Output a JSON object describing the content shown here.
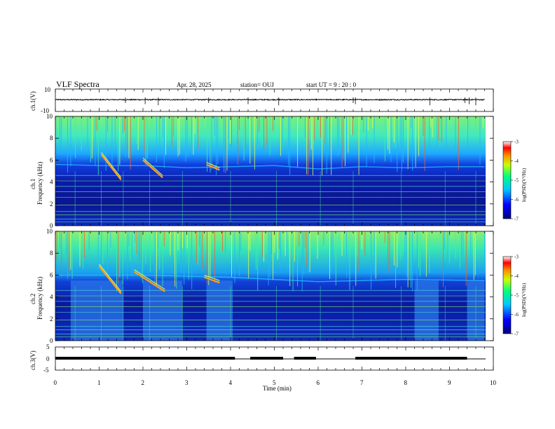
{
  "header": {
    "title": "VLF Spectra",
    "date": "Apr. 28, 2025",
    "station": "station= OUJ",
    "start_ut": "start  UT =  9 : 20 : 0"
  },
  "chart_data": [
    {
      "type": "line",
      "panel": "ch1-waveform",
      "ylabel": "ch.1(V)",
      "ylim": [
        -10,
        10
      ],
      "yticks": [
        "10",
        "-10"
      ],
      "xlim": [
        0,
        10
      ],
      "series": [
        {
          "x": [
            0,
            1,
            2,
            3,
            4,
            5,
            6,
            7,
            8,
            9,
            9.8
          ],
          "values": [
            0.5,
            0.6,
            0.5,
            0.4,
            0.5,
            0.6,
            0.5,
            0.4,
            0.5,
            0.6,
            0.5
          ]
        }
      ]
    },
    {
      "type": "heatmap",
      "panel": "ch1-spectrogram",
      "ylabel": "ch.1\nFrequency (kHz)",
      "ylim": [
        0,
        10
      ],
      "xlim": [
        0,
        10
      ],
      "yticks": [
        "0",
        "2",
        "4",
        "6",
        "8",
        "10"
      ],
      "colorbar": {
        "label": "log(PSD)(V²/Hz)",
        "range": [
          -7,
          -3
        ],
        "ticks": [
          "-3",
          "-4",
          "-5",
          "-6",
          "-7"
        ]
      },
      "band_boundary_khz": [
        [
          0,
          5.6
        ],
        [
          1,
          5.5
        ],
        [
          2,
          5.5
        ],
        [
          3,
          5.3
        ],
        [
          4,
          5.4
        ],
        [
          5,
          5.5
        ],
        [
          6,
          5.2
        ],
        [
          7,
          5.4
        ],
        [
          8,
          5.3
        ],
        [
          9,
          5.4
        ],
        [
          9.8,
          5.4
        ]
      ],
      "hiss_features": [
        {
          "t": [
            1.05,
            1.5
          ],
          "f": [
            6.5,
            4.2
          ]
        },
        {
          "t": [
            2.0,
            2.45
          ],
          "f": [
            6.0,
            4.4
          ]
        },
        {
          "t": [
            3.45,
            3.75
          ],
          "f": [
            5.6,
            5.1
          ]
        }
      ]
    },
    {
      "type": "heatmap",
      "panel": "ch2-spectrogram",
      "ylabel": "ch.2\nFrequency (kHz)",
      "ylim": [
        0,
        10
      ],
      "xlim": [
        0,
        10
      ],
      "yticks": [
        "0",
        "2",
        "4",
        "6",
        "8",
        "10"
      ],
      "colorbar": {
        "label": "log(PSD)(V²/Hz)",
        "range": [
          -7,
          -3
        ],
        "ticks": [
          "-3",
          "-4",
          "-5",
          "-6",
          "-7"
        ]
      },
      "band_boundary_khz": [
        [
          0,
          6.0
        ],
        [
          2,
          6.0
        ],
        [
          4,
          5.8
        ],
        [
          6,
          5.4
        ],
        [
          8,
          5.6
        ],
        [
          9.8,
          5.5
        ]
      ],
      "lowfreq_noise_intervals_min": [
        [
          0.35,
          1.55
        ],
        [
          2.0,
          2.9
        ],
        [
          3.45,
          4.05
        ],
        [
          8.2,
          8.75
        ],
        [
          9.4,
          9.8
        ]
      ],
      "hiss_features": [
        {
          "t": [
            1.0,
            1.5
          ],
          "f": [
            6.8,
            4.3
          ]
        },
        {
          "t": [
            1.8,
            2.5
          ],
          "f": [
            6.3,
            4.5
          ]
        },
        {
          "t": [
            3.4,
            3.75
          ],
          "f": [
            5.8,
            5.3
          ]
        }
      ]
    },
    {
      "type": "line",
      "panel": "ch3-waveform",
      "ylabel": "ch.3(V)",
      "ylim": [
        -5,
        5
      ],
      "yticks": [
        "5",
        "0",
        "-5"
      ],
      "xlim": [
        0,
        10
      ],
      "xlabel": "Time (min)",
      "xticks": [
        "0",
        "1",
        "2",
        "3",
        "4",
        "5",
        "6",
        "7",
        "8",
        "9",
        "10"
      ],
      "series": [
        {
          "x": [
            0,
            9.8
          ],
          "values": [
            0,
            0
          ]
        }
      ],
      "high_segments": [
        [
          0,
          4.1
        ],
        [
          4.45,
          5.2
        ],
        [
          5.45,
          5.95
        ],
        [
          6.85,
          9.4
        ]
      ]
    }
  ]
}
